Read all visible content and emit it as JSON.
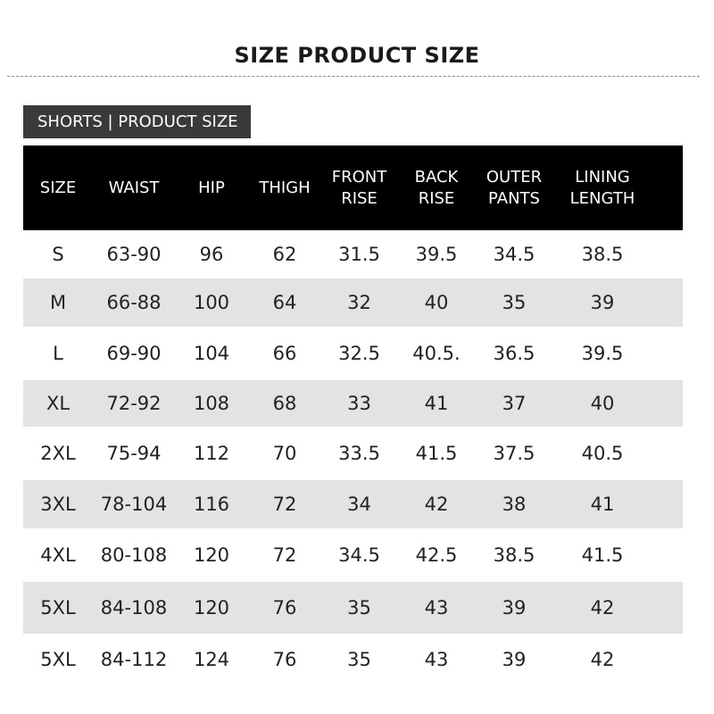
{
  "title": "SIZE PRODUCT SIZE",
  "section_label": "SHORTS | PRODUCT SIZE",
  "table": {
    "headers": [
      [
        "SIZE"
      ],
      [
        "WAIST"
      ],
      [
        "HIP"
      ],
      [
        "THIGH"
      ],
      [
        "FRONT",
        "RISE"
      ],
      [
        "BACK",
        "RISE"
      ],
      [
        "OUTER",
        "PANTS"
      ],
      [
        "LINING",
        "LENGTH"
      ]
    ],
    "rows": [
      [
        "S",
        "63-90",
        "96",
        "62",
        "31.5",
        "39.5",
        "34.5",
        "38.5"
      ],
      [
        "M",
        "66-88",
        "100",
        "64",
        "32",
        "40",
        "35",
        "39"
      ],
      [
        "L",
        "69-90",
        "104",
        "66",
        "32.5",
        "40.5.",
        "36.5",
        "39.5"
      ],
      [
        "XL",
        "72-92",
        "108",
        "68",
        "33",
        "41",
        "37",
        "40"
      ],
      [
        "2XL",
        "75-94",
        "112",
        "70",
        "33.5",
        "41.5",
        "37.5",
        "40.5"
      ],
      [
        "3XL",
        "78-104",
        "116",
        "72",
        "34",
        "42",
        "38",
        "41"
      ],
      [
        "4XL",
        "80-108",
        "120",
        "72",
        "34.5",
        "42.5",
        "38.5",
        "41.5"
      ],
      [
        "5XL",
        "84-108",
        "120",
        "76",
        "35",
        "43",
        "39",
        "42"
      ],
      [
        "5XL",
        "84-112",
        "124",
        "76",
        "35",
        "43",
        "39",
        "42"
      ]
    ]
  }
}
